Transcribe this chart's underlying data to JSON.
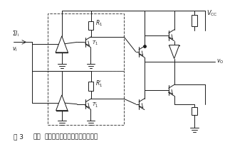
{
  "bg_color": "#ffffff",
  "line_color": "#1a1a1a",
  "dash_color": "#444444",
  "title_fig": "图 3",
  "title_bold": "或非",
  "title_rest": "门输入端并联时输入电流的计算",
  "vcc_label": "$V_{\\mathrm{CC}}$",
  "vo_label": "$v_{\\mathrm{O}}$",
  "vi_label": "$v_{\\mathrm{I}}$",
  "ii_label": "$\\Sigma I_{\\mathrm{i}}$",
  "R1_label": "$R_1$",
  "R1p_label": "$R_1'$",
  "T1_label": "$T_1$",
  "T1p_label": "$T_1'$"
}
